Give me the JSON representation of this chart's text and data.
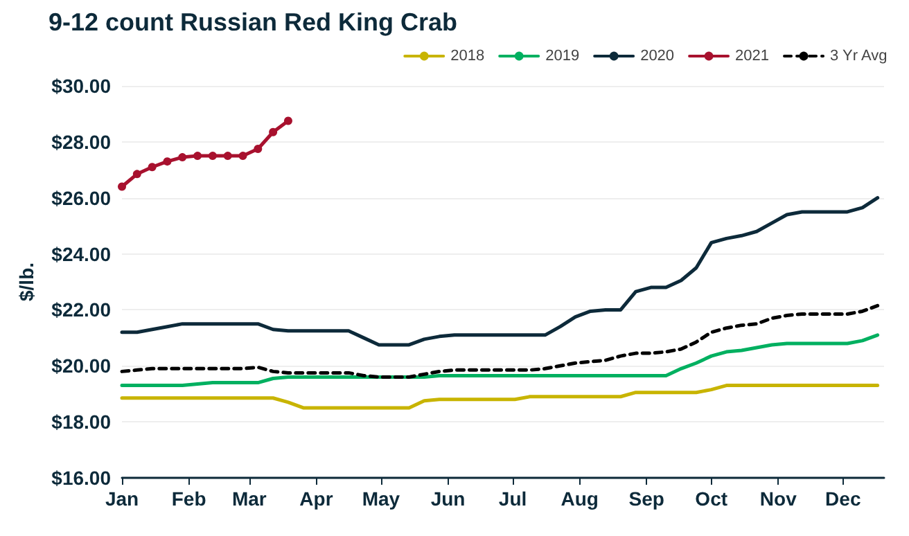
{
  "chart_data": {
    "type": "line",
    "title": "9-12 count Russian Red King Crab",
    "ylabel": "$/lb.",
    "x": [
      "--01-01",
      "--01-08",
      "--01-15",
      "--01-22",
      "--01-29",
      "--02-05",
      "--02-12",
      "--02-19",
      "--02-26",
      "--03-05",
      "--03-12",
      "--03-19",
      "--03-26",
      "--04-02",
      "--04-09",
      "--04-16",
      "--04-23",
      "--04-30",
      "--05-07",
      "--05-14",
      "--05-21",
      "--05-28",
      "--06-04",
      "--06-11",
      "--06-18",
      "--06-25",
      "--07-02",
      "--07-09",
      "--07-16",
      "--07-23",
      "--07-30",
      "--08-06",
      "--08-13",
      "--08-20",
      "--08-27",
      "--09-03",
      "--09-10",
      "--09-17",
      "--09-24",
      "--10-01",
      "--10-08",
      "--10-15",
      "--10-22",
      "--10-29",
      "--11-05",
      "--11-12",
      "--11-19",
      "--11-26",
      "--12-03",
      "--12-10",
      "--12-17"
    ],
    "series": [
      {
        "name": "2018",
        "color": "#c8b400",
        "marker": "none",
        "values": [
          18.85,
          18.85,
          18.85,
          18.85,
          18.85,
          18.85,
          18.85,
          18.85,
          18.85,
          18.85,
          18.85,
          18.7,
          18.5,
          18.5,
          18.5,
          18.5,
          18.5,
          18.5,
          18.5,
          18.5,
          18.75,
          18.8,
          18.8,
          18.8,
          18.8,
          18.8,
          18.8,
          18.9,
          18.9,
          18.9,
          18.9,
          18.9,
          18.9,
          18.9,
          19.05,
          19.05,
          19.05,
          19.05,
          19.05,
          19.15,
          19.3,
          19.3,
          19.3,
          19.3,
          19.3,
          19.3,
          19.3,
          19.3,
          19.3,
          19.3,
          19.3
        ]
      },
      {
        "name": "2019",
        "color": "#00b060",
        "marker": "none",
        "values": [
          19.3,
          19.3,
          19.3,
          19.3,
          19.3,
          19.35,
          19.4,
          19.4,
          19.4,
          19.4,
          19.55,
          19.6,
          19.6,
          19.6,
          19.6,
          19.6,
          19.6,
          19.6,
          19.6,
          19.6,
          19.6,
          19.65,
          19.65,
          19.65,
          19.65,
          19.65,
          19.65,
          19.65,
          19.65,
          19.65,
          19.65,
          19.65,
          19.65,
          19.65,
          19.65,
          19.65,
          19.65,
          19.9,
          20.1,
          20.35,
          20.5,
          20.55,
          20.65,
          20.75,
          20.8,
          20.8,
          20.8,
          20.8,
          20.8,
          20.9,
          21.1
        ]
      },
      {
        "name": "2020",
        "color": "#0d2a3a",
        "marker": "none",
        "values": [
          21.2,
          21.2,
          21.3,
          21.4,
          21.5,
          21.5,
          21.5,
          21.5,
          21.5,
          21.5,
          21.3,
          21.25,
          21.25,
          21.25,
          21.25,
          21.25,
          21.0,
          20.75,
          20.75,
          20.75,
          20.95,
          21.05,
          21.1,
          21.1,
          21.1,
          21.1,
          21.1,
          21.1,
          21.1,
          21.4,
          21.75,
          21.95,
          22.0,
          22.0,
          22.65,
          22.8,
          22.8,
          23.05,
          23.5,
          24.4,
          24.55,
          24.65,
          24.8,
          25.1,
          25.4,
          25.5,
          25.5,
          25.5,
          25.5,
          25.65,
          26.0
        ]
      },
      {
        "name": "2021",
        "color": "#a8112e",
        "marker": "circle",
        "x": [
          "--01-01",
          "--01-08",
          "--01-15",
          "--01-22",
          "--01-29",
          "--02-05",
          "--02-12",
          "--02-19",
          "--02-26",
          "--03-05",
          "--03-12",
          "--03-19"
        ],
        "values": [
          26.4,
          26.85,
          27.1,
          27.3,
          27.45,
          27.5,
          27.5,
          27.5,
          27.5,
          27.75,
          28.35,
          28.75
        ]
      },
      {
        "name": "3 Yr Avg",
        "color": "#000000",
        "marker": "none",
        "line_style": "dashed",
        "values": [
          19.8,
          19.85,
          19.9,
          19.9,
          19.9,
          19.9,
          19.9,
          19.9,
          19.9,
          19.95,
          19.8,
          19.75,
          19.75,
          19.75,
          19.75,
          19.75,
          19.65,
          19.6,
          19.6,
          19.6,
          19.7,
          19.8,
          19.85,
          19.85,
          19.85,
          19.85,
          19.85,
          19.85,
          19.9,
          20.0,
          20.1,
          20.15,
          20.2,
          20.35,
          20.45,
          20.45,
          20.5,
          20.6,
          20.85,
          21.2,
          21.35,
          21.45,
          21.5,
          21.7,
          21.8,
          21.85,
          21.85,
          21.85,
          21.85,
          21.95,
          22.15
        ]
      }
    ],
    "xlim": [
      "--01-01",
      "--12-20"
    ],
    "xticks": [
      {
        "value": "--01-01",
        "label": "Jan"
      },
      {
        "value": "--02-01",
        "label": "Feb"
      },
      {
        "value": "--03-01",
        "label": "Mar"
      },
      {
        "value": "--04-01",
        "label": "Apr"
      },
      {
        "value": "--05-01",
        "label": "May"
      },
      {
        "value": "--06-01",
        "label": "Jun"
      },
      {
        "value": "--07-01",
        "label": "Jul"
      },
      {
        "value": "--08-01",
        "label": "Aug"
      },
      {
        "value": "--09-01",
        "label": "Sep"
      },
      {
        "value": "--10-01",
        "label": "Oct"
      },
      {
        "value": "--11-01",
        "label": "Nov"
      },
      {
        "value": "--12-01",
        "label": "Dec"
      }
    ],
    "ylim": [
      16,
      30
    ],
    "yticks": [
      {
        "value": 16,
        "label": "$16.00"
      },
      {
        "value": 18,
        "label": "$18.00"
      },
      {
        "value": 20,
        "label": "$20.00"
      },
      {
        "value": 22,
        "label": "$22.00"
      },
      {
        "value": 24,
        "label": "$24.00"
      },
      {
        "value": 26,
        "label": "$26.00"
      },
      {
        "value": 28,
        "label": "$28.00"
      },
      {
        "value": 30,
        "label": "$30.00"
      }
    ],
    "grid": "y",
    "legend": "top right"
  }
}
